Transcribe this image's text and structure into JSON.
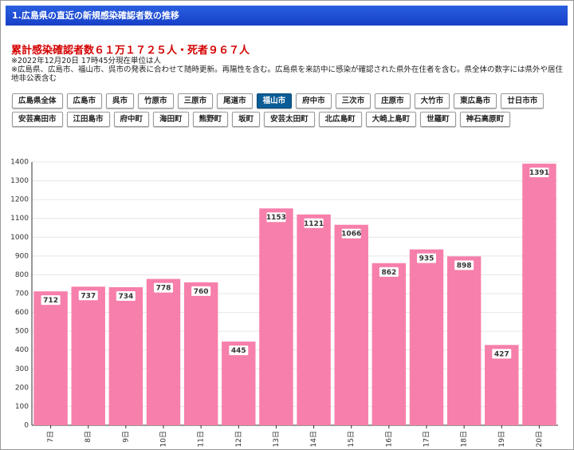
{
  "header": {
    "title": "1.広島県の直近の新規感染確認者数の推移"
  },
  "summary": "累計感染確認者数６１万１７２５人・死者９６７人",
  "notes": [
    "※2022年12月20日 17時45分現在単位は人",
    "※広島県、広島市、福山市、呉市の発表に合わせて随時更新。再陽性を含む。広島県を来訪中に感染が確認された県外在住者を含む。県全体の数字には県外や居住地非公表含む"
  ],
  "buttons": {
    "items": [
      "広島県全体",
      "広島市",
      "呉市",
      "竹原市",
      "三原市",
      "尾道市",
      "福山市",
      "府中市",
      "三次市",
      "庄原市",
      "大竹市",
      "東広島市",
      "廿日市市",
      "安芸高田市",
      "江田島市",
      "府中町",
      "海田町",
      "熊野町",
      "坂町",
      "安芸太田町",
      "北広島町",
      "大崎上島町",
      "世羅町",
      "神石高原町"
    ],
    "selected": 6
  },
  "chart_data": {
    "type": "bar",
    "categories": [
      "7日",
      "8日",
      "9日",
      "10日",
      "11日",
      "12日",
      "13日",
      "14日",
      "15日",
      "16日",
      "17日",
      "18日",
      "19日",
      "20日"
    ],
    "values": [
      712,
      737,
      734,
      778,
      760,
      445,
      1153,
      1121,
      1066,
      862,
      935,
      898,
      427,
      1391
    ],
    "color": "#f77fab",
    "ylim": [
      0,
      1400
    ],
    "yticks": [
      0,
      100,
      200,
      300,
      400,
      500,
      600,
      700,
      800,
      900,
      1000,
      1100,
      1200,
      1300,
      1400
    ],
    "grid": true
  }
}
